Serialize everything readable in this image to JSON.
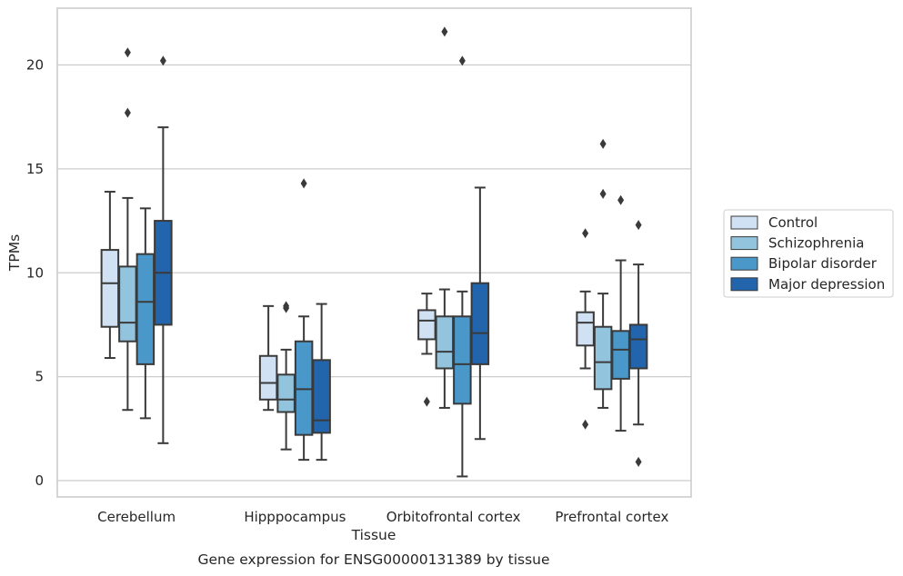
{
  "chart_data": {
    "type": "box",
    "caption": "Gene expression for ENSG00000131389 by tissue",
    "xlabel": "Tissue",
    "ylabel": "TPMs",
    "ylim": [
      -0.8,
      22.7
    ],
    "yticks": [
      0,
      5,
      10,
      15,
      20
    ],
    "grid": true,
    "legend_position": "right",
    "categories": [
      "Cerebellum",
      "Hipppocampus",
      "Orbitofrontal cortex",
      "Prefrontal cortex"
    ],
    "series": [
      {
        "name": "Control",
        "color": "#cfe1f2",
        "boxes": [
          {
            "whisker_low": 5.9,
            "q1": 7.4,
            "median": 9.5,
            "q3": 11.1,
            "whisker_high": 13.9,
            "outliers": []
          },
          {
            "whisker_low": 3.4,
            "q1": 3.9,
            "median": 4.7,
            "q3": 6.0,
            "whisker_high": 8.4,
            "outliers": []
          },
          {
            "whisker_low": 6.1,
            "q1": 6.8,
            "median": 7.7,
            "q3": 8.2,
            "whisker_high": 9.0,
            "outliers": [
              3.8
            ]
          },
          {
            "whisker_low": 5.4,
            "q1": 6.5,
            "median": 7.6,
            "q3": 8.1,
            "whisker_high": 9.1,
            "outliers": [
              11.9,
              2.7
            ]
          }
        ]
      },
      {
        "name": "Schizophrenia",
        "color": "#93c4de",
        "boxes": [
          {
            "whisker_low": 3.4,
            "q1": 6.7,
            "median": 7.6,
            "q3": 10.3,
            "whisker_high": 13.6,
            "outliers": [
              17.7,
              20.6
            ]
          },
          {
            "whisker_low": 1.5,
            "q1": 3.3,
            "median": 3.9,
            "q3": 5.1,
            "whisker_high": 6.3,
            "outliers": [
              8.3,
              8.4
            ]
          },
          {
            "whisker_low": 3.5,
            "q1": 5.4,
            "median": 6.2,
            "q3": 7.9,
            "whisker_high": 9.2,
            "outliers": [
              21.6
            ]
          },
          {
            "whisker_low": 3.5,
            "q1": 4.4,
            "median": 5.7,
            "q3": 7.4,
            "whisker_high": 9.0,
            "outliers": [
              13.8,
              16.2
            ]
          }
        ]
      },
      {
        "name": "Bipolar disorder",
        "color": "#4a97c9",
        "boxes": [
          {
            "whisker_low": 3.0,
            "q1": 5.6,
            "median": 8.6,
            "q3": 10.9,
            "whisker_high": 13.1,
            "outliers": []
          },
          {
            "whisker_low": 1.0,
            "q1": 2.2,
            "median": 4.4,
            "q3": 6.7,
            "whisker_high": 7.9,
            "outliers": [
              14.3
            ]
          },
          {
            "whisker_low": 0.2,
            "q1": 3.7,
            "median": 5.6,
            "q3": 7.9,
            "whisker_high": 9.1,
            "outliers": [
              20.2
            ]
          },
          {
            "whisker_low": 2.4,
            "q1": 4.9,
            "median": 6.3,
            "q3": 7.2,
            "whisker_high": 10.6,
            "outliers": [
              13.5
            ]
          }
        ]
      },
      {
        "name": "Major depression",
        "color": "#2365ad",
        "boxes": [
          {
            "whisker_low": 1.8,
            "q1": 7.5,
            "median": 10.0,
            "q3": 12.5,
            "whisker_high": 17.0,
            "outliers": [
              20.2
            ]
          },
          {
            "whisker_low": 1.0,
            "q1": 2.3,
            "median": 2.9,
            "q3": 5.8,
            "whisker_high": 8.5,
            "outliers": []
          },
          {
            "whisker_low": 2.0,
            "q1": 5.6,
            "median": 7.1,
            "q3": 9.5,
            "whisker_high": 14.1,
            "outliers": []
          },
          {
            "whisker_low": 2.7,
            "q1": 5.4,
            "median": 6.8,
            "q3": 7.5,
            "whisker_high": 10.4,
            "outliers": [
              12.3,
              0.9
            ]
          }
        ]
      }
    ]
  }
}
